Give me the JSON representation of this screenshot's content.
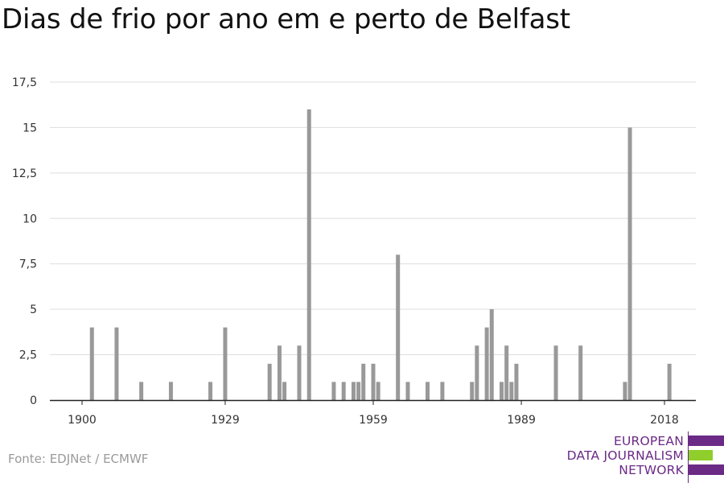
{
  "title": "Dias de frio por ano em e perto de Belfast",
  "source": "Fonte: EDJNet / ECMWF",
  "brand": {
    "lines": [
      "EUROPEAN",
      "DATA JOURNALISM",
      "NETWORK"
    ],
    "colors": {
      "purple": "#6b2a86",
      "green": "#8fce2b"
    }
  },
  "colors": {
    "bar": "#999999",
    "grid": "#dddddd",
    "axis": "#222222"
  },
  "chart_data": {
    "type": "bar",
    "title": "Dias de frio por ano em e perto de Belfast",
    "xlabel": "",
    "ylabel": "",
    "xlim": [
      1900,
      2018
    ],
    "ylim": [
      0,
      17.5
    ],
    "grid": true,
    "x_ticks": [
      "1900",
      "1929",
      "1959",
      "1989",
      "2018"
    ],
    "y_ticks": [
      "0",
      "2,5",
      "5",
      "7,5",
      "10",
      "12,5",
      "15",
      "17,5"
    ],
    "x": [
      1902,
      1907,
      1912,
      1918,
      1926,
      1929,
      1938,
      1940,
      1941,
      1944,
      1946,
      1951,
      1953,
      1955,
      1956,
      1957,
      1959,
      1960,
      1964,
      1966,
      1970,
      1973,
      1979,
      1980,
      1982,
      1983,
      1985,
      1986,
      1987,
      1988,
      1996,
      2001,
      2010,
      2011,
      2019
    ],
    "values": [
      4,
      4,
      1,
      1,
      1,
      4,
      2,
      3,
      1,
      3,
      16,
      1,
      1,
      1,
      1,
      2,
      2,
      1,
      8,
      1,
      1,
      1,
      1,
      3,
      4,
      5,
      1,
      3,
      1,
      2,
      3,
      3,
      1,
      15,
      2
    ]
  }
}
